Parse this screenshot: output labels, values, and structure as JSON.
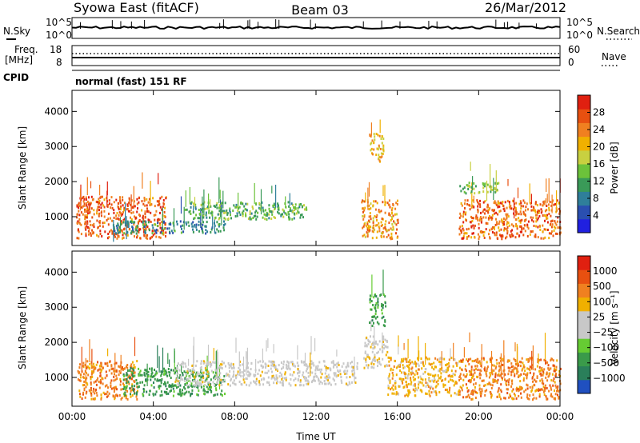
{
  "header": {
    "station": "Syowa East (fitACF)",
    "beam": "Beam 03",
    "date": "26/Mar/2012"
  },
  "side_labels": {
    "nsky": "N.Sky",
    "nsearch": "N.Search",
    "freq_line1": "Freq.",
    "freq_line2": "[MHz]",
    "nave": "Nave",
    "cpid": "CPID"
  },
  "cpid_text": "normal (fast) 151 RF",
  "chart_data": [
    {
      "type": "line",
      "panel": "noise",
      "y_left_ticks": [
        "10^5",
        "10^0"
      ],
      "y_right_ticks": [
        "10^5",
        "10^0"
      ],
      "series": [
        {
          "name": "N.Sky",
          "style": "solid"
        },
        {
          "name": "N.Search",
          "style": "dotted"
        }
      ]
    },
    {
      "type": "line",
      "panel": "frequency",
      "y_left_ticks": [
        "18",
        "8"
      ],
      "y_right_ticks": [
        "60",
        "0"
      ],
      "freq_mhz": 11.0,
      "nave": 38
    },
    {
      "type": "heatmap",
      "panel": "power",
      "xlabel": "",
      "ylabel": "Slant Range [km]",
      "ylim": [
        180,
        4600
      ],
      "y_ticks": [
        1000,
        2000,
        3000,
        4000
      ],
      "colorbar": {
        "label": "Power [dB]",
        "ticks": [
          "28",
          "24",
          "20",
          "16",
          "12",
          "8",
          "4"
        ],
        "colors": [
          "#2020e0",
          "#2a4fb0",
          "#2f7f9a",
          "#3a9a58",
          "#6cc23a",
          "#c8d040",
          "#f0b000",
          "#f08020",
          "#e85010",
          "#e02010"
        ]
      },
      "regions": [
        {
          "t0": 0.2,
          "t1": 4.6,
          "r0": 400,
          "r1": 1600,
          "value": 26
        },
        {
          "t0": 2.0,
          "t1": 7.5,
          "r0": 550,
          "r1": 900,
          "value": 8
        },
        {
          "t0": 5.5,
          "t1": 11.5,
          "r0": 950,
          "r1": 1450,
          "value": 12
        },
        {
          "t0": 14.2,
          "t1": 16.0,
          "r0": 400,
          "r1": 1500,
          "value": 22
        },
        {
          "t0": 14.6,
          "t1": 15.3,
          "r0": 2600,
          "r1": 3400,
          "value": 20
        },
        {
          "t0": 19.0,
          "t1": 24.0,
          "r0": 400,
          "r1": 1500,
          "value": 25
        },
        {
          "t0": 19.0,
          "t1": 21.0,
          "r0": 1700,
          "r1": 2000,
          "value": 14
        }
      ]
    },
    {
      "type": "heatmap",
      "panel": "velocity",
      "xlabel": "Time UT",
      "ylabel": "Slant Range [km]",
      "ylim": [
        180,
        4600
      ],
      "y_ticks": [
        1000,
        2000,
        3000,
        4000
      ],
      "x_ticks": [
        "00:00",
        "04:00",
        "08:00",
        "12:00",
        "16:00",
        "20:00",
        "00:00"
      ],
      "xlim_hours": [
        0,
        24
      ],
      "colorbar": {
        "label": "Velocity [m s⁻¹]",
        "ticks": [
          "1000",
          "500",
          "100",
          "25",
          "−25",
          "−100",
          "−500",
          "−1000"
        ],
        "colors": [
          "#2050c0",
          "#2a7f5a",
          "#3a9a4a",
          "#66cc33",
          "#c8c8c8",
          "#c8c8c8",
          "#f0b000",
          "#f08020",
          "#e85010",
          "#e02010"
        ]
      },
      "regions": [
        {
          "t0": 0.2,
          "t1": 3.2,
          "r0": 400,
          "r1": 1500,
          "value": 150
        },
        {
          "t0": 2.5,
          "t1": 7.5,
          "r0": 500,
          "r1": 1300,
          "value": -400
        },
        {
          "t0": 5.0,
          "t1": 14.0,
          "r0": 800,
          "r1": 1500,
          "value": 0
        },
        {
          "t0": 14.3,
          "t1": 15.5,
          "r0": 1300,
          "r1": 2200,
          "value": 0
        },
        {
          "t0": 14.6,
          "t1": 15.4,
          "r0": 2500,
          "r1": 3400,
          "value": -500
        },
        {
          "t0": 15.5,
          "t1": 19.0,
          "r0": 500,
          "r1": 1600,
          "value": 60
        },
        {
          "t0": 19.0,
          "t1": 24.0,
          "r0": 400,
          "r1": 1600,
          "value": 200
        }
      ]
    }
  ]
}
